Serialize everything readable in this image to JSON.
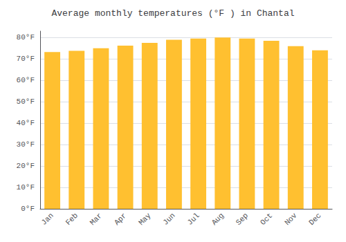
{
  "chart_data": {
    "type": "bar",
    "title": "Average monthly temperatures (°F ) in Chantal",
    "categories": [
      "Jan",
      "Feb",
      "Mar",
      "Apr",
      "May",
      "Jun",
      "Jul",
      "Aug",
      "Sep",
      "Oct",
      "Nov",
      "Dec"
    ],
    "values": [
      73.2,
      73.8,
      75.0,
      76.2,
      77.5,
      79.0,
      79.5,
      80.0,
      79.5,
      78.5,
      76.0,
      74.0
    ],
    "color": "#FFC030",
    "ylim": [
      0,
      83
    ],
    "yticks": [
      {
        "value": 0,
        "label": "0°F"
      },
      {
        "value": 10,
        "label": "10°F"
      },
      {
        "value": 20,
        "label": "20°F"
      },
      {
        "value": 30,
        "label": "30°F"
      },
      {
        "value": 40,
        "label": "40°F"
      },
      {
        "value": 50,
        "label": "50°F"
      },
      {
        "value": 60,
        "label": "60°F"
      },
      {
        "value": 70,
        "label": "70°F"
      },
      {
        "value": 80,
        "label": "80°F"
      }
    ],
    "grid": true
  }
}
